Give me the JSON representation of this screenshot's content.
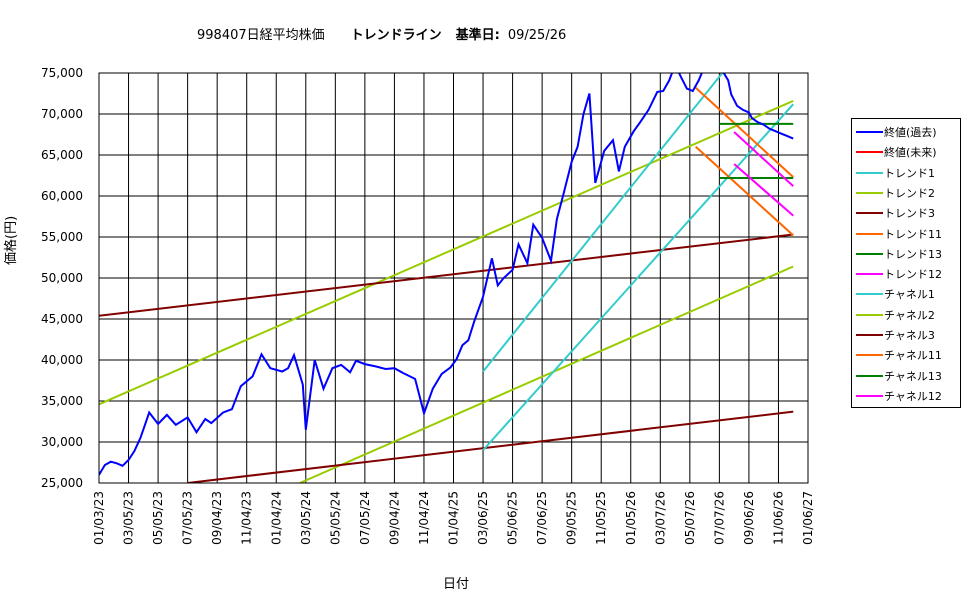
{
  "header": {
    "symbol": "998407日経平均株価",
    "trend_title": "トレンドライン",
    "base_date_label": "基準日:",
    "base_date_value": "09/25/26"
  },
  "chart_data": {
    "type": "line",
    "xlabel": "日付",
    "ylabel": "価格(円)",
    "ylim": [
      25000,
      75000
    ],
    "yticks": [
      25000,
      30000,
      35000,
      40000,
      45000,
      50000,
      55000,
      60000,
      65000,
      70000,
      75000
    ],
    "ytick_labels": [
      "25,000",
      "30,000",
      "35,000",
      "40,000",
      "45,000",
      "50,000",
      "55,000",
      "60,000",
      "65,000",
      "70,000",
      "75,000"
    ],
    "xlim": [
      "01/03/23",
      "01/06/27"
    ],
    "xtick_labels": [
      "01/03/23",
      "03/05/23",
      "05/05/23",
      "07/05/23",
      "09/04/23",
      "11/04/23",
      "01/04/24",
      "03/05/24",
      "05/05/24",
      "07/05/24",
      "09/04/24",
      "11/04/24",
      "01/04/25",
      "03/06/25",
      "05/06/25",
      "07/06/25",
      "09/05/25",
      "11/05/25",
      "01/05/26",
      "03/07/26",
      "05/07/26",
      "07/07/26",
      "09/06/26",
      "11/06/26",
      "01/06/27"
    ],
    "grid": true,
    "legend_position": "right",
    "legend": [
      {
        "name": "終値(過去)",
        "color": "#0000ff"
      },
      {
        "name": "終値(未来)",
        "color": "#ff0000"
      },
      {
        "name": "トレンド1",
        "color": "#33cccc"
      },
      {
        "name": "トレンド2",
        "color": "#99cc00"
      },
      {
        "name": "トレンド3",
        "color": "#800000"
      },
      {
        "name": "トレンド11",
        "color": "#ff6600"
      },
      {
        "name": "トレンド13",
        "color": "#008000"
      },
      {
        "name": "トレンド12",
        "color": "#ff00ff"
      },
      {
        "name": "チャネル1",
        "color": "#33cccc"
      },
      {
        "name": "チャネル2",
        "color": "#99cc00"
      },
      {
        "name": "チャネル3",
        "color": "#800000"
      },
      {
        "name": "チャネル11",
        "color": "#ff6600"
      },
      {
        "name": "チャネル13",
        "color": "#008000"
      },
      {
        "name": "チャネル12",
        "color": "#ff00ff"
      }
    ],
    "close_past": {
      "x": [
        0,
        0.2,
        0.4,
        0.6,
        0.8,
        1.0,
        1.2,
        1.4,
        1.5,
        1.7,
        2.0,
        2.3,
        2.6,
        3.0,
        3.3,
        3.6,
        3.8,
        4.2,
        4.5,
        4.8,
        5.2,
        5.5,
        5.8,
        6.2,
        6.4,
        6.6,
        6.9,
        7.0,
        7.3,
        7.6,
        7.9,
        8.2,
        8.5,
        8.7,
        9.0,
        9.4,
        9.7,
        10.0,
        10.3,
        10.7,
        11.0,
        11.3,
        11.6,
        11.9,
        12.1,
        12.3,
        12.5,
        12.7,
        13.0,
        13.3,
        13.5,
        13.7,
        14.0,
        14.2,
        14.5,
        14.7,
        15.0,
        15.3,
        15.5,
        15.7,
        16.0,
        16.2,
        16.4,
        16.6,
        16.8,
        17.1,
        17.4,
        17.6,
        17.8,
        18.1,
        18.3,
        18.6,
        18.9,
        19.1,
        19.3,
        19.5,
        19.7,
        19.9,
        20.1,
        20.3,
        20.5,
        20.7,
        20.9,
        21.1,
        21.3,
        21.4,
        21.6,
        21.8,
        22.0,
        22.1,
        22.3,
        22.5,
        22.7,
        22.9,
        23.1,
        23.3,
        23.5
      ],
      "y": [
        26000,
        27200,
        27600,
        27400,
        27100,
        27800,
        28900,
        30500,
        31500,
        33600,
        32200,
        33300,
        32100,
        33000,
        31200,
        32800,
        32300,
        33600,
        34000,
        36800,
        38000,
        40700,
        39000,
        38600,
        39000,
        40600,
        37000,
        31500,
        40000,
        36500,
        39000,
        39400,
        38500,
        39900,
        39500,
        39200,
        38900,
        39000,
        38400,
        37700,
        33500,
        36500,
        38300,
        39100,
        40100,
        41800,
        42400,
        44700,
        47700,
        52400,
        49100,
        50000,
        51000,
        54100,
        51800,
        56500,
        54900,
        52100,
        57200,
        59900,
        64200,
        66000,
        70000,
        72500,
        61600,
        65500,
        66800,
        63000,
        66000,
        67900,
        68900,
        70500,
        72700,
        72800,
        74100,
        76000,
        74500,
        73100,
        72800,
        74100,
        75800,
        77200,
        76500,
        75300,
        74100,
        72400,
        71000,
        70500,
        70200,
        69500,
        69000,
        68700,
        68200,
        67900,
        67600,
        67300,
        67000
      ]
    },
    "trend1": {
      "x": [
        13.0,
        21.1
      ],
      "y": [
        38600,
        75000
      ]
    },
    "channel1": {
      "x": [
        13.0,
        23.5
      ],
      "y": [
        29000,
        71200
      ]
    },
    "trend2": {
      "x": [
        0,
        23.5
      ],
      "y": [
        34600,
        71600
      ]
    },
    "channel2": {
      "x": [
        6.8,
        23.5
      ],
      "y": [
        25000,
        51400
      ]
    },
    "trend3": {
      "x": [
        0,
        23.5
      ],
      "y": [
        45400,
        55300
      ]
    },
    "channel3": {
      "x": [
        3.0,
        23.5
      ],
      "y": [
        25000,
        33700
      ]
    },
    "trend11": {
      "x": [
        20.2,
        23.5
      ],
      "y": [
        73200,
        62300
      ]
    },
    "channel11": {
      "x": [
        20.2,
        23.5
      ],
      "y": [
        66000,
        55200
      ]
    },
    "trend13": {
      "x": [
        21.0,
        23.5
      ],
      "y": [
        68800,
        68800
      ]
    },
    "channel13": {
      "x": [
        21.0,
        23.5
      ],
      "y": [
        62200,
        62200
      ]
    },
    "trend12": {
      "x": [
        21.5,
        23.5
      ],
      "y": [
        67800,
        61200
      ]
    },
    "channel12": {
      "x": [
        21.5,
        23.5
      ],
      "y": [
        63900,
        57600
      ]
    }
  }
}
